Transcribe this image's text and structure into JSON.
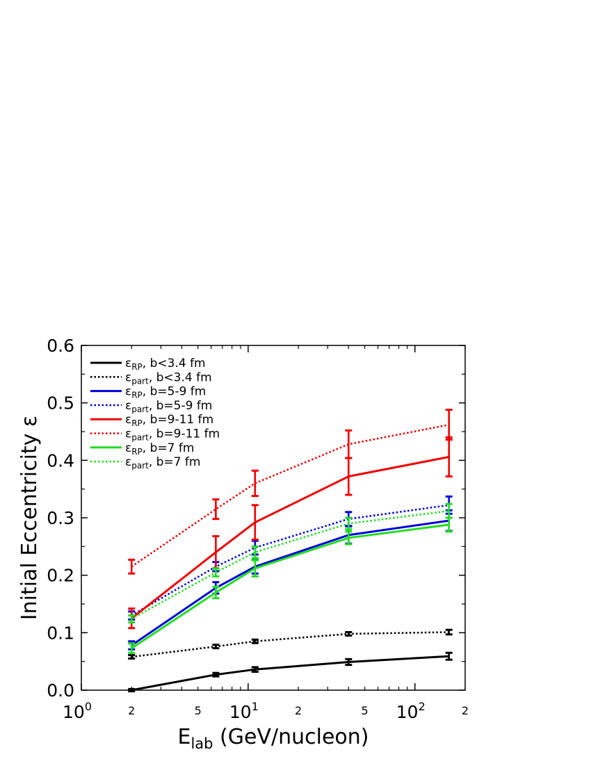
{
  "chart_data": {
    "type": "line",
    "xlabel_main": "E",
    "xlabel_sub": "lab",
    "xlabel_rest": " (GeV/nucleon)",
    "ylabel": "Initial Eccentricity ε",
    "xscale": "log",
    "xlim": [
      1,
      200
    ],
    "ylim": [
      0.0,
      0.6
    ],
    "grid": false,
    "legend_position": "top-left",
    "x": [
      2,
      6.4,
      11,
      40,
      160
    ],
    "y_ticks": [
      "0.0",
      "0.1",
      "0.2",
      "0.3",
      "0.4",
      "0.5",
      "0.6"
    ],
    "x_ticks": {
      "decades": [
        {
          "value": 1,
          "base": "10",
          "exp": "0"
        },
        {
          "value": 10,
          "base": "10",
          "exp": "1"
        },
        {
          "value": 100,
          "base": "10",
          "exp": "2"
        }
      ],
      "minors": [
        {
          "value": 2,
          "label": "2"
        },
        {
          "value": 5,
          "label": "5"
        },
        {
          "value": 20,
          "label": "2"
        },
        {
          "value": 50,
          "label": "5"
        },
        {
          "value": 200,
          "label": "2"
        }
      ]
    },
    "series": [
      {
        "sym": "ε",
        "sub": "RP",
        "rest": ", b<3.4 fm",
        "color": "#000000",
        "style": "solid",
        "values": [
          0.0,
          0.027,
          0.036,
          0.049,
          0.059
        ],
        "errors": [
          0.002,
          0.003,
          0.004,
          0.005,
          0.006
        ]
      },
      {
        "sym": "ε",
        "sub": "part",
        "rest": ", b<3.4 fm",
        "color": "#000000",
        "style": "dotted",
        "values": [
          0.058,
          0.076,
          0.085,
          0.098,
          0.101
        ],
        "errors": [
          0.003,
          0.003,
          0.003,
          0.003,
          0.004
        ]
      },
      {
        "sym": "ε",
        "sub": "RP",
        "rest": ", b=5-9 fm",
        "color": "#0000dd",
        "style": "solid",
        "values": [
          0.078,
          0.178,
          0.215,
          0.27,
          0.295
        ],
        "errors": [
          0.007,
          0.01,
          0.012,
          0.015,
          0.018
        ]
      },
      {
        "sym": "ε",
        "sub": "part",
        "rest": ", b=5-9 fm",
        "color": "#0000dd",
        "style": "dotted",
        "values": [
          0.13,
          0.215,
          0.248,
          0.298,
          0.322
        ],
        "errors": [
          0.007,
          0.008,
          0.012,
          0.012,
          0.015
        ]
      },
      {
        "sym": "ε",
        "sub": "RP",
        "rest": ", b=9-11 fm",
        "color": "#ee0000",
        "style": "solid",
        "values": [
          0.125,
          0.24,
          0.292,
          0.372,
          0.406
        ],
        "errors": [
          0.017,
          0.028,
          0.03,
          0.032,
          0.034
        ]
      },
      {
        "sym": "ε",
        "sub": "part",
        "rest": ", b=9-11 fm",
        "color": "#ee0000",
        "style": "dotted",
        "values": [
          0.215,
          0.315,
          0.36,
          0.428,
          0.462
        ],
        "errors": [
          0.012,
          0.017,
          0.022,
          0.024,
          0.026
        ]
      },
      {
        "sym": "ε",
        "sub": "RP",
        "rest": ", b=7 fm",
        "color": "#22dd22",
        "style": "solid",
        "values": [
          0.073,
          0.17,
          0.212,
          0.265,
          0.288
        ],
        "errors": [
          0.008,
          0.01,
          0.014,
          0.011,
          0.012
        ]
      },
      {
        "sym": "ε",
        "sub": "part",
        "rest": ", b=7 fm",
        "color": "#22dd22",
        "style": "dotted",
        "values": [
          0.124,
          0.205,
          0.24,
          0.29,
          0.312
        ],
        "errors": [
          0.006,
          0.007,
          0.01,
          0.01,
          0.012
        ]
      }
    ]
  }
}
